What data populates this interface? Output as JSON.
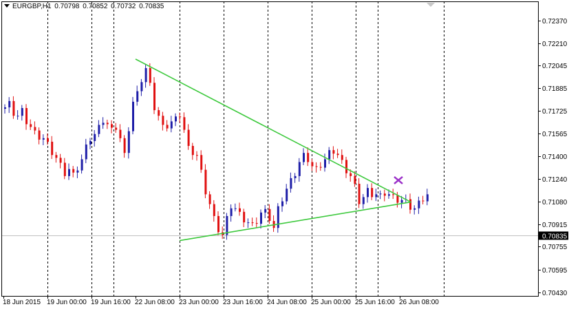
{
  "header": {
    "symbol": "EURGBP,H1",
    "open": "0.70798",
    "high": "0.70852",
    "low": "0.70732",
    "close": "0.70835"
  },
  "colors": {
    "background": "#ffffff",
    "bull_candle": "#1e1ea8",
    "bear_candle": "#e01010",
    "trendline": "#3dc93d",
    "marker": "#9b30c8",
    "grid": "#000000",
    "bid_line": "#c0c0c0",
    "price_label_bg": "#000000",
    "price_label_text": "#ffffff"
  },
  "chart_data": {
    "type": "candlestick",
    "symbol": "EURGBP",
    "timeframe": "H1",
    "current_price": "0.70835",
    "y_ticks": [
      "0.72370",
      "0.72210",
      "0.72045",
      "0.71885",
      "0.71725",
      "0.71565",
      "0.71400",
      "0.71240",
      "0.71080",
      "0.70915",
      "0.70755",
      "0.70595",
      "0.70430"
    ],
    "x_ticks": [
      "18 Jun 2015",
      "19 Jun 00:00",
      "19 Jun 16:00",
      "22 Jun 08:00",
      "23 Jun 00:00",
      "23 Jun 16:00",
      "24 Jun 08:00",
      "25 Jun 00:00",
      "25 Jun 16:00",
      "26 Jun 08:00"
    ],
    "ylim": [
      0.704,
      0.7245
    ],
    "grid": "vertical dashed at time ticks",
    "ohlc_path": [
      0.7174,
      0.7177,
      0.7171,
      0.7168,
      0.7172,
      0.7165,
      0.716,
      0.7156,
      0.7154,
      0.7152,
      0.7148,
      0.7143,
      0.7138,
      0.7133,
      0.7128,
      0.713,
      0.7126,
      0.7132,
      0.7137,
      0.7146,
      0.7153,
      0.7155,
      0.716,
      0.7166,
      0.7162,
      0.7158,
      0.7161,
      0.7152,
      0.714,
      0.716,
      0.7178,
      0.7184,
      0.7195,
      0.7202,
      0.719,
      0.7175,
      0.7168,
      0.716,
      0.7162,
      0.7164,
      0.7166,
      0.717,
      0.7158,
      0.7145,
      0.7143,
      0.714,
      0.7128,
      0.7115,
      0.7105,
      0.7095,
      0.7088,
      0.7083,
      0.7095,
      0.7105,
      0.7102,
      0.7098,
      0.7095,
      0.7092,
      0.709,
      0.7094,
      0.7099,
      0.71,
      0.7096,
      0.7088,
      0.7102,
      0.711,
      0.7116,
      0.7122,
      0.7128,
      0.7135,
      0.714,
      0.7138,
      0.7132,
      0.713,
      0.7134,
      0.7137,
      0.7142,
      0.7144,
      0.714,
      0.7135,
      0.713,
      0.7125,
      0.7118,
      0.7108,
      0.711,
      0.7115,
      0.7113,
      0.7112,
      0.7111,
      0.7114,
      0.7112,
      0.711,
      0.7109,
      0.7108,
      0.7107,
      0.7104,
      0.7102,
      0.7106,
      0.711,
      0.7112,
      0.7116,
      0.7114,
      0.7112,
      0.712,
      0.711,
      0.7095,
      0.7083,
      0.7081
    ],
    "trendlines": [
      {
        "from": {
          "time": "22 Jun 08:00",
          "price": 0.72094
        },
        "to": {
          "time": "26 Jun 12:00",
          "price": 0.71075
        }
      },
      {
        "from": {
          "time": "23 Jun 00:00",
          "price": 0.708
        },
        "to": {
          "time": "26 Jun 12:00",
          "price": 0.71075
        }
      }
    ],
    "marker": {
      "type": "cross",
      "time": "26 Jun 06:00",
      "price": 0.7123
    }
  }
}
